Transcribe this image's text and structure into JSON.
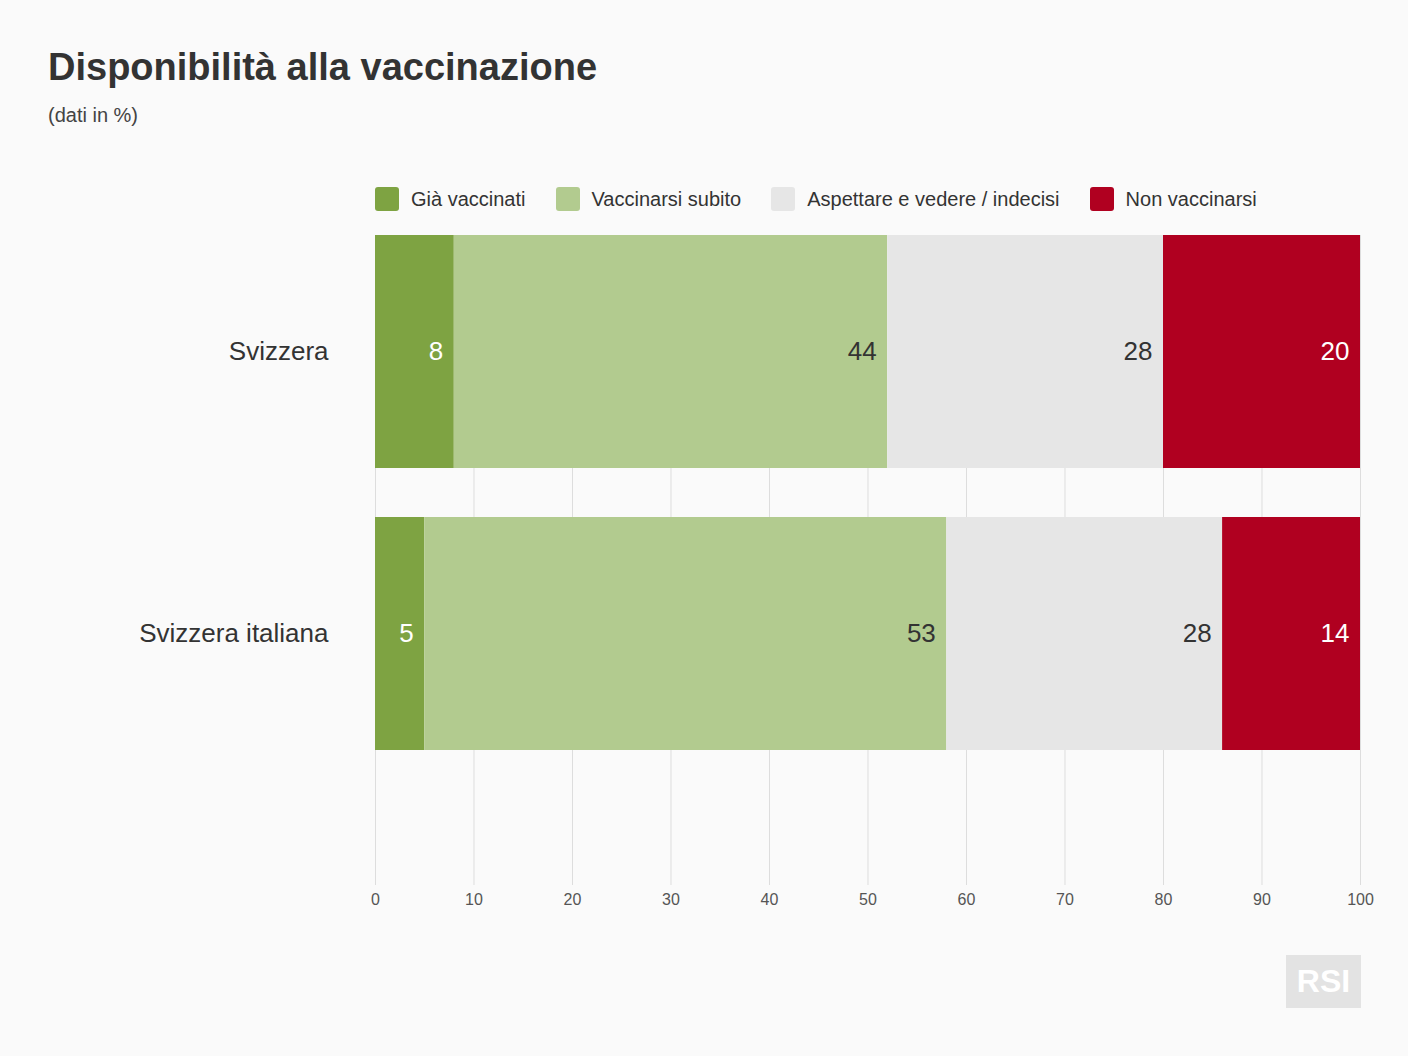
{
  "chart_data": {
    "type": "bar",
    "title": "Disponibilità alla vaccinazione",
    "subtitle": "(dati in %)",
    "orientation": "horizontal",
    "stacked": true,
    "data_labels": true,
    "grid": true,
    "legend": "top",
    "categories": [
      "Svizzera",
      "Svizzera italiana"
    ],
    "series": [
      {
        "name": "Già vaccinati",
        "color": "#7ea342",
        "values": [
          8,
          5
        ]
      },
      {
        "name": "Vaccinarsi subito",
        "color": "#b2cb8f",
        "values": [
          44,
          53
        ]
      },
      {
        "name": "Aspettare e vedere / indecisi",
        "color": "#e6e6e6",
        "values": [
          28,
          28
        ]
      },
      {
        "name": "Non vaccinarsi",
        "color": "#b00020",
        "values": [
          20,
          14
        ]
      }
    ],
    "xlim": [
      0,
      100
    ],
    "xticks": [
      0,
      10,
      20,
      30,
      40,
      50,
      60,
      70,
      80,
      90,
      100
    ],
    "caption": "RSI"
  }
}
